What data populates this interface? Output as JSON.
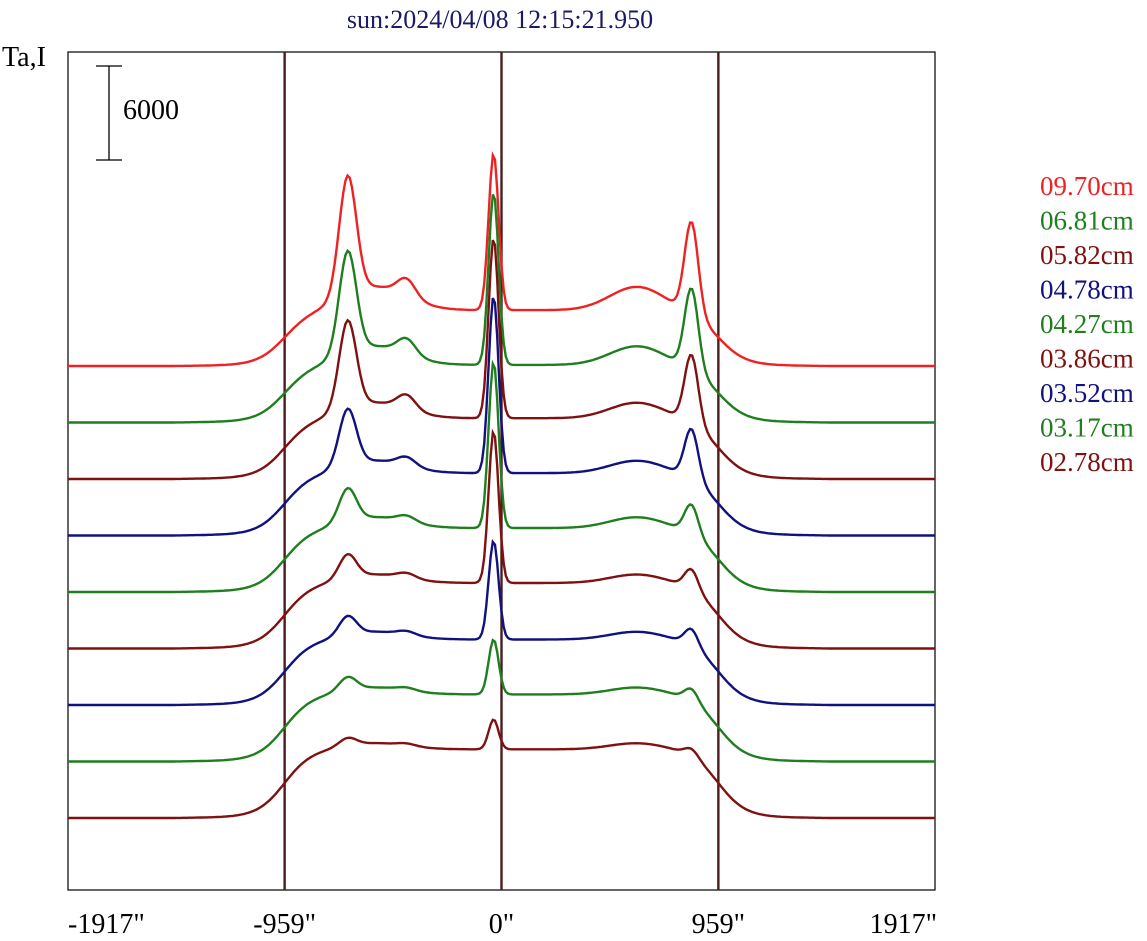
{
  "chart_data": {
    "type": "line",
    "title": "sun:2024/04/08 12:15:21.950",
    "ylabel": "Ta,I",
    "xlabel": "",
    "scale_bar_label": "6000",
    "scale_bar_value": 6000,
    "xlim": [
      -1917,
      1917
    ],
    "x_ticks": [
      {
        "value": -1917,
        "label": "-1917\""
      },
      {
        "value": -959,
        "label": "-959\""
      },
      {
        "value": 0,
        "label": "0\""
      },
      {
        "value": 959,
        "label": "959\""
      },
      {
        "value": 1917,
        "label": "1917\""
      }
    ],
    "limb_lines": [
      -959,
      0,
      959
    ],
    "grid": false,
    "legend_position": "right",
    "series": [
      {
        "name": "09.70cm",
        "color": "#ee2222",
        "peaks": [
          10,
          7.6,
          5.9
        ],
        "mid": 3.2,
        "plateau": 3.5,
        "outside": 0.26,
        "bump": 1.5
      },
      {
        "name": "06.81cm",
        "color": "#1f7f1f",
        "peaks": [
          11,
          6.5,
          5.2
        ],
        "mid": 2.8,
        "plateau": 3.6,
        "outside": 0.3,
        "bump": 1.2
      },
      {
        "name": "05.82cm",
        "color": "#7f1111",
        "peaks": [
          11.5,
          5.6,
          4.4
        ],
        "mid": 2.6,
        "plateau": 3.8,
        "outside": 0.32,
        "bump": 1.0
      },
      {
        "name": "04.78cm",
        "color": "#11117f",
        "peaks": [
          11.3,
          3.6,
          3.2
        ],
        "mid": 1.6,
        "plateau": 3.9,
        "outside": 0.33,
        "bump": 0.8
      },
      {
        "name": "04.27cm",
        "color": "#1f7f1f",
        "peaks": [
          10.6,
          2.1,
          1.9
        ],
        "mid": 1.1,
        "plateau": 4.0,
        "outside": 0.33,
        "bump": 0.7
      },
      {
        "name": "03.86cm",
        "color": "#7f1111",
        "peaks": [
          9.7,
          1.5,
          1.3
        ],
        "mid": 0.9,
        "plateau": 4.1,
        "outside": 0.33,
        "bump": 0.55
      },
      {
        "name": "03.52cm",
        "color": "#11117f",
        "peaks": [
          6.3,
          1.2,
          1.1
        ],
        "mid": 0.7,
        "plateau": 4.1,
        "outside": 0.33,
        "bump": 0.5
      },
      {
        "name": "03.17cm",
        "color": "#1f7f1f",
        "peaks": [
          3.5,
          0.85,
          0.8
        ],
        "mid": 0.5,
        "plateau": 4.2,
        "outside": 0.33,
        "bump": 0.45
      },
      {
        "name": "02.78cm",
        "color": "#7f1111",
        "peaks": [
          1.9,
          0.5,
          0.5
        ],
        "mid": 0.4,
        "plateau": 4.3,
        "outside": 0.33,
        "bump": 0.4
      }
    ]
  }
}
